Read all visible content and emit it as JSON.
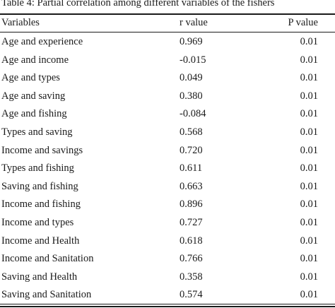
{
  "caption": "Table 4: Partial correlation among different variables of the fishers",
  "table": {
    "headers": [
      "Variables",
      "r value",
      "P value"
    ],
    "rows": [
      [
        "Age and experience",
        "0.969",
        "0.01"
      ],
      [
        "Age and income",
        "-0.015",
        "0.01"
      ],
      [
        "Age and types",
        "0.049",
        "0.01"
      ],
      [
        "Age and saving",
        "0.380",
        "0.01"
      ],
      [
        "Age and fishing",
        "-0.084",
        "0.01"
      ],
      [
        "Types and saving",
        "0.568",
        "0.01"
      ],
      [
        "Income and savings",
        "0.720",
        "0.01"
      ],
      [
        "Types and fishing",
        "0.611",
        "0.01"
      ],
      [
        "Saving and fishing",
        "0.663",
        "0.01"
      ],
      [
        "Income and fishing",
        "0.896",
        "0.01"
      ],
      [
        "Income and types",
        "0.727",
        "0.01"
      ],
      [
        "Income and Health",
        "0.618",
        "0.01"
      ],
      [
        "Income and Sanitation",
        "0.766",
        "0.01"
      ],
      [
        "Saving and Health",
        "0.358",
        "0.01"
      ],
      [
        "Saving and Sanitation",
        "0.574",
        "0.01"
      ]
    ]
  }
}
